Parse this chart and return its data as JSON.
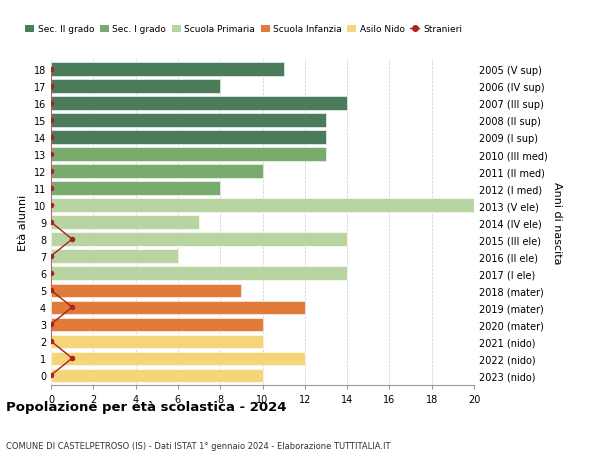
{
  "ages": [
    18,
    17,
    16,
    15,
    14,
    13,
    12,
    11,
    10,
    9,
    8,
    7,
    6,
    5,
    4,
    3,
    2,
    1,
    0
  ],
  "right_labels": [
    "2005 (V sup)",
    "2006 (IV sup)",
    "2007 (III sup)",
    "2008 (II sup)",
    "2009 (I sup)",
    "2010 (III med)",
    "2011 (II med)",
    "2012 (I med)",
    "2013 (V ele)",
    "2014 (IV ele)",
    "2015 (III ele)",
    "2016 (II ele)",
    "2017 (I ele)",
    "2018 (mater)",
    "2019 (mater)",
    "2020 (mater)",
    "2021 (nido)",
    "2022 (nido)",
    "2023 (nido)"
  ],
  "values": [
    11,
    8,
    14,
    13,
    13,
    13,
    10,
    8,
    20,
    7,
    14,
    6,
    14,
    9,
    12,
    10,
    10,
    12,
    10
  ],
  "stranieri_x": [
    0,
    0,
    0,
    0,
    0,
    0,
    0,
    0,
    0,
    0,
    1,
    0,
    0,
    0,
    1,
    0,
    0,
    1,
    0
  ],
  "bar_colors": [
    "#4a7c59",
    "#4a7c59",
    "#4a7c59",
    "#4a7c59",
    "#4a7c59",
    "#7aab6e",
    "#7aab6e",
    "#7aab6e",
    "#b8d4a0",
    "#b8d4a0",
    "#b8d4a0",
    "#b8d4a0",
    "#b8d4a0",
    "#e07b39",
    "#e07b39",
    "#e07b39",
    "#f5d57a",
    "#f5d57a",
    "#f5d57a"
  ],
  "legend_labels": [
    "Sec. II grado",
    "Sec. I grado",
    "Scuola Primaria",
    "Scuola Infanzia",
    "Asilo Nido",
    "Stranieri"
  ],
  "legend_colors": [
    "#4a7c59",
    "#7aab6e",
    "#b8d4a0",
    "#e07b39",
    "#f5d57a",
    "#aa2222"
  ],
  "title": "Popolazione per età scolastica - 2024",
  "subtitle": "COMUNE DI CASTELPETROSO (IS) - Dati ISTAT 1° gennaio 2024 - Elaborazione TUTTITALIA.IT",
  "ylabel": "Età alunni",
  "right_ylabel": "Anni di nascita",
  "xlim": [
    0,
    20
  ],
  "xticks": [
    0,
    2,
    4,
    6,
    8,
    10,
    12,
    14,
    16,
    18,
    20
  ],
  "background_color": "#ffffff",
  "grid_color": "#cccccc",
  "bar_height": 0.78
}
